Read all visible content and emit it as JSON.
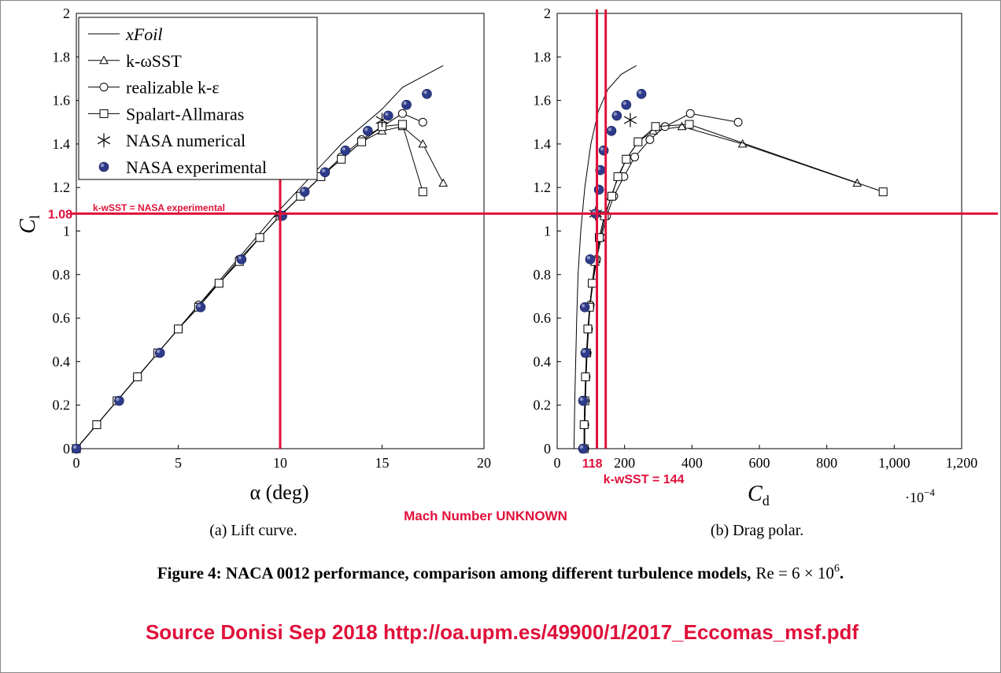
{
  "chart_data": [
    {
      "type": "line",
      "subtitle": "(a) Lift curve.",
      "xlabel": "α (deg)",
      "ylabel": "C",
      "ylabel_sub": "l",
      "xlim": [
        0,
        20
      ],
      "xticks": [
        0,
        5,
        10,
        15,
        20
      ],
      "ylim": [
        0,
        2
      ],
      "yticks": [
        0,
        0.2,
        0.4,
        0.6,
        0.8,
        1,
        1.2,
        1.4,
        1.6,
        1.8,
        2
      ],
      "grid": false,
      "legend": "upper left",
      "series": [
        {
          "name": "xFoil",
          "color": "#000000",
          "marker": "none",
          "line": true,
          "x": [
            0,
            1,
            2,
            3,
            4,
            5,
            6,
            7,
            8,
            9,
            10,
            11,
            12,
            13,
            14,
            15,
            16,
            17,
            18
          ],
          "values": [
            0,
            0.11,
            0.22,
            0.33,
            0.44,
            0.55,
            0.66,
            0.77,
            0.88,
            0.99,
            1.1,
            1.2,
            1.3,
            1.4,
            1.48,
            1.56,
            1.66,
            1.71,
            1.76
          ]
        },
        {
          "name": "k-ωSST",
          "color": "#000000",
          "marker": "triangle",
          "line": true,
          "x": [
            0,
            1,
            2,
            3,
            4,
            5,
            6,
            7,
            8,
            9,
            10,
            11,
            12,
            13,
            14,
            15,
            16,
            17,
            18
          ],
          "values": [
            0,
            0.11,
            0.22,
            0.33,
            0.44,
            0.55,
            0.66,
            0.76,
            0.87,
            0.97,
            1.07,
            1.16,
            1.25,
            1.33,
            1.41,
            1.46,
            1.48,
            1.4,
            1.22
          ]
        },
        {
          "name": "realizable k-ε",
          "color": "#000000",
          "marker": "circle",
          "line": true,
          "x": [
            0,
            1,
            2,
            3,
            4,
            5,
            6,
            7,
            8,
            9,
            10,
            11,
            12,
            13,
            14,
            15,
            16,
            17
          ],
          "values": [
            0,
            0.11,
            0.22,
            0.33,
            0.44,
            0.55,
            0.66,
            0.76,
            0.87,
            0.97,
            1.07,
            1.16,
            1.25,
            1.34,
            1.42,
            1.48,
            1.54,
            1.5
          ]
        },
        {
          "name": "Spalart-Allmaras",
          "color": "#000000",
          "marker": "square",
          "line": true,
          "x": [
            0,
            1,
            2,
            3,
            4,
            5,
            6,
            7,
            8,
            9,
            10,
            11,
            12,
            13,
            14,
            15,
            16,
            17
          ],
          "values": [
            0,
            0.11,
            0.22,
            0.33,
            0.44,
            0.55,
            0.65,
            0.76,
            0.86,
            0.97,
            1.07,
            1.16,
            1.25,
            1.33,
            1.41,
            1.48,
            1.49,
            1.18
          ]
        },
        {
          "name": "NASA numerical",
          "color": "#000000",
          "marker": "asterisk",
          "line": false,
          "x": [
            10,
            15
          ],
          "values": [
            1.08,
            1.51
          ]
        },
        {
          "name": "NASA experimental",
          "color": "#2e3b8c",
          "marker": "dot",
          "line": false,
          "x": [
            0,
            2.1,
            4.1,
            6.1,
            8.1,
            10.1,
            11.2,
            12.2,
            13.2,
            14.3,
            15.3,
            16.2,
            17.2
          ],
          "values": [
            0,
            0.22,
            0.44,
            0.65,
            0.87,
            1.07,
            1.18,
            1.27,
            1.37,
            1.46,
            1.53,
            1.58,
            1.63
          ]
        }
      ],
      "hlines": [
        {
          "value": 1.08,
          "label": "1.08",
          "color": "#e0103a"
        }
      ],
      "vlines": [
        {
          "value": 10,
          "color": "#e0103a"
        }
      ],
      "annotation": "k-wSST = NASA experimental"
    },
    {
      "type": "line",
      "subtitle": "(b) Drag polar.",
      "xlabel": "C",
      "xlabel_sub": "d",
      "x_multiplier": "·10",
      "x_multiplier_exp": "−4",
      "xlim": [
        0,
        1200
      ],
      "xticks": [
        0,
        200,
        400,
        600,
        800,
        {
          "value": 1000,
          "label": "1,000"
        },
        {
          "value": 1200,
          "label": "1,200"
        }
      ],
      "ylim": [
        0,
        2
      ],
      "yticks": [
        0,
        0.2,
        0.4,
        0.6,
        0.8,
        1,
        1.2,
        1.4,
        1.6,
        1.8,
        2
      ],
      "grid": false,
      "legend": false,
      "series": [
        {
          "name": "xFoil",
          "color": "#000000",
          "marker": "none",
          "line": true,
          "x": [
            50,
            52,
            55,
            58,
            62,
            70,
            82,
            100,
            122,
            150,
            190,
            235
          ],
          "values": [
            0,
            0.2,
            0.4,
            0.6,
            0.8,
            1,
            1.2,
            1.4,
            1.55,
            1.65,
            1.72,
            1.76
          ]
        },
        {
          "name": "k-ωSST",
          "color": "#000000",
          "marker": "triangle",
          "line": true,
          "x": [
            80,
            80,
            82,
            85,
            88,
            92,
            97,
            105,
            115,
            128,
            143,
            160,
            182,
            205,
            240,
            285,
            370,
            550,
            890
          ],
          "values": [
            0,
            0.11,
            0.22,
            0.33,
            0.44,
            0.55,
            0.66,
            0.76,
            0.87,
            0.97,
            1.07,
            1.16,
            1.25,
            1.33,
            1.41,
            1.46,
            1.48,
            1.4,
            1.22
          ]
        },
        {
          "name": "realizable k-ε",
          "color": "#000000",
          "marker": "circle",
          "line": true,
          "x": [
            82,
            82,
            84,
            86,
            89,
            93,
            98,
            106,
            117,
            131,
            147,
            168,
            198,
            230,
            275,
            320,
            395,
            537
          ],
          "values": [
            0,
            0.11,
            0.22,
            0.33,
            0.44,
            0.55,
            0.66,
            0.76,
            0.87,
            0.97,
            1.07,
            1.16,
            1.25,
            1.34,
            1.42,
            1.48,
            1.54,
            1.5
          ]
        },
        {
          "name": "Spalart-Allmaras",
          "color": "#000000",
          "marker": "square",
          "line": true,
          "x": [
            80,
            80,
            82,
            84,
            87,
            91,
            96,
            104,
            112,
            125,
            140,
            162,
            180,
            205,
            240,
            292,
            392,
            967
          ],
          "values": [
            0,
            0.11,
            0.22,
            0.33,
            0.44,
            0.55,
            0.65,
            0.76,
            0.86,
            0.97,
            1.07,
            1.16,
            1.25,
            1.33,
            1.41,
            1.48,
            1.49,
            1.18
          ]
        },
        {
          "name": "NASA numerical",
          "color": "#000000",
          "marker": "asterisk",
          "line": false,
          "x": [
            114,
            217
          ],
          "values": [
            1.08,
            1.51
          ]
        },
        {
          "name": "NASA experimental",
          "color": "#2e3b8c",
          "marker": "dot",
          "line": false,
          "x": [
            77,
            77,
            84,
            82,
            98,
            114,
            124,
            128,
            138,
            161,
            177,
            205,
            250
          ],
          "values": [
            0,
            0.22,
            0.44,
            0.65,
            0.87,
            1.08,
            1.19,
            1.28,
            1.37,
            1.46,
            1.53,
            1.58,
            1.63
          ]
        }
      ],
      "hlines": [
        {
          "value": 1.08,
          "color": "#e0103a"
        }
      ],
      "vlines": [
        {
          "value": 118,
          "label": "118",
          "color": "#e0103a"
        },
        {
          "value": 144,
          "label": "k-wSST = 144",
          "color": "#e0103a"
        }
      ]
    }
  ],
  "figure": {
    "caption": "Figure 4: NACA 0012 performance, comparison among different turbulence models,",
    "caption_re": "Re = 6 × 10",
    "caption_re_exp": "6",
    "caption_end": ".",
    "note": "Mach Number UNKNOWN",
    "source": "Source Donisi Sep 2018 http://oa.upm.es/49900/1/2017_Eccomas_msf.pdf"
  }
}
